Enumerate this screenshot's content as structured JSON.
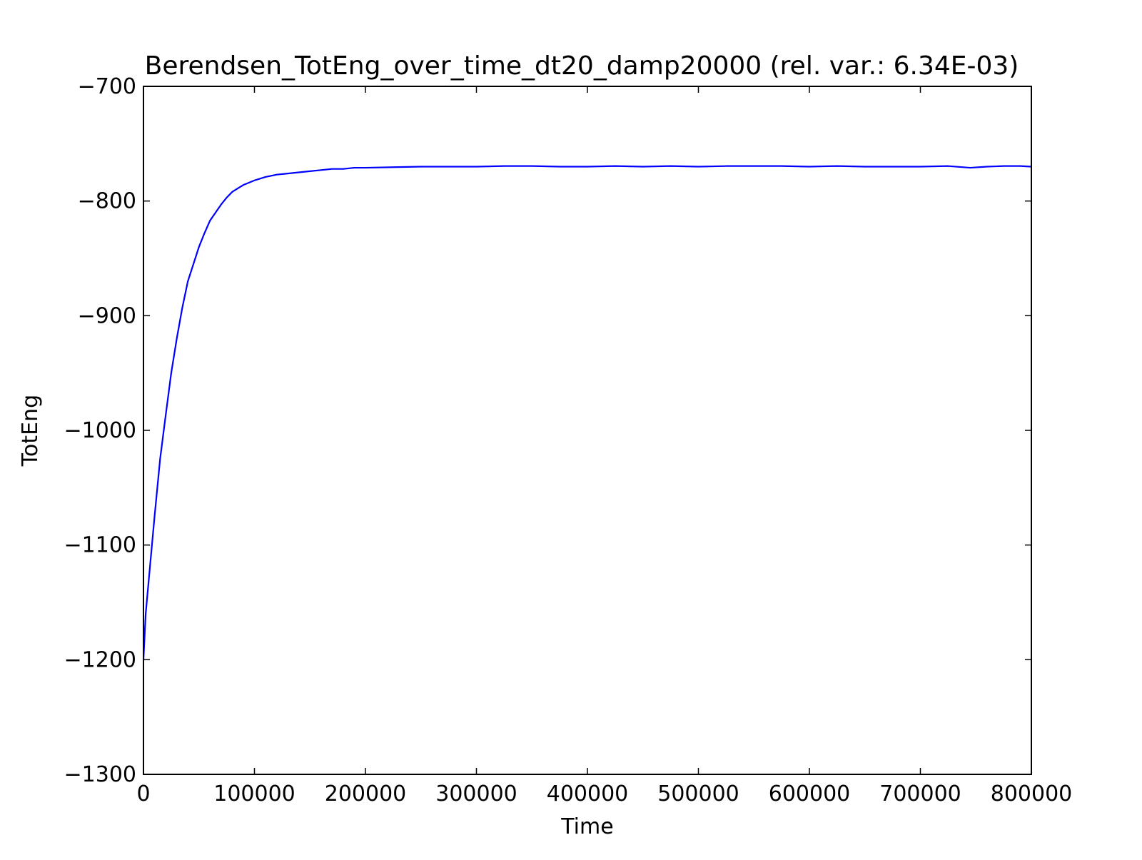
{
  "chart_data": {
    "type": "line",
    "title": "Berendsen_TotEng_over_time_dt20_damp20000 (rel. var.: 6.34E-03)",
    "xlabel": "Time",
    "ylabel": "TotEng",
    "xlim": [
      0,
      800000
    ],
    "ylim": [
      -1300,
      -700
    ],
    "xticks": [
      0,
      100000,
      200000,
      300000,
      400000,
      500000,
      600000,
      700000,
      800000
    ],
    "xtick_labels": [
      "0",
      "100000",
      "200000",
      "300000",
      "400000",
      "500000",
      "600000",
      "700000",
      "800000"
    ],
    "yticks": [
      -1300,
      -1200,
      -1100,
      -1000,
      -900,
      -800,
      -700
    ],
    "ytick_labels": [
      "−1300",
      "−1200",
      "−1100",
      "−1000",
      "−900",
      "−800",
      "−700"
    ],
    "grid": false,
    "legend": "none",
    "series": [
      {
        "color": "#0000ff",
        "x": [
          0,
          2000,
          5000,
          10000,
          15000,
          20000,
          25000,
          30000,
          35000,
          40000,
          45000,
          50000,
          55000,
          60000,
          65000,
          70000,
          75000,
          80000,
          85000,
          90000,
          95000,
          100000,
          110000,
          120000,
          130000,
          140000,
          150000,
          160000,
          170000,
          180000,
          190000,
          200000,
          225000,
          250000,
          275000,
          300000,
          325000,
          350000,
          375000,
          400000,
          425000,
          450000,
          475000,
          500000,
          525000,
          550000,
          575000,
          600000,
          625000,
          650000,
          675000,
          700000,
          725000,
          745000,
          760000,
          775000,
          790000,
          800000
        ],
        "y": [
          -1200,
          -1160,
          -1128,
          -1075,
          -1025,
          -987,
          -950,
          -920,
          -893,
          -870,
          -855,
          -840,
          -828,
          -817,
          -810,
          -803,
          -797,
          -792,
          -789,
          -786,
          -784,
          -782,
          -779,
          -777,
          -776,
          -775,
          -774,
          -773,
          -772,
          -772,
          -771,
          -771,
          -770.5,
          -770,
          -770,
          -770,
          -769.5,
          -769.5,
          -770,
          -770,
          -769.5,
          -770,
          -769.5,
          -770,
          -769.5,
          -769.5,
          -769.5,
          -770,
          -769.5,
          -770,
          -770,
          -770,
          -769.5,
          -771,
          -770,
          -769.5,
          -769.5,
          -770
        ]
      }
    ]
  }
}
